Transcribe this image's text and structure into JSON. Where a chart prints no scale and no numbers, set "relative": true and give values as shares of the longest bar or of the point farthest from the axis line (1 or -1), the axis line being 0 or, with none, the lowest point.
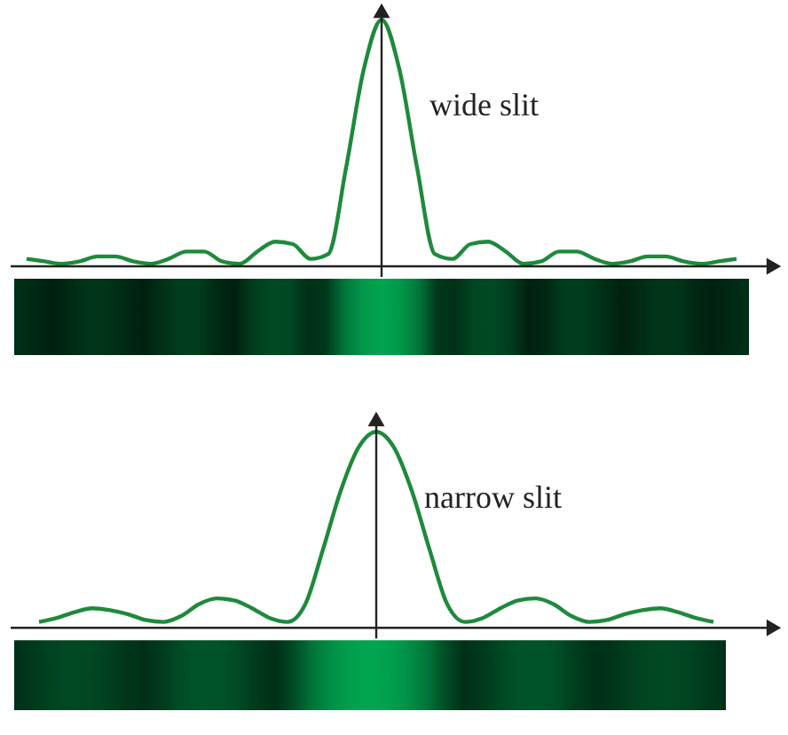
{
  "chart_data": [
    {
      "type": "line",
      "relative": true,
      "annotations": [
        "wide slit"
      ],
      "categories": [
        null,
        null,
        null,
        null,
        null,
        null,
        null,
        null,
        null,
        null,
        null,
        null,
        null,
        null,
        null,
        null,
        null,
        null,
        null,
        null,
        null,
        null,
        null,
        null,
        null,
        null,
        null,
        null,
        null,
        null,
        null,
        null,
        null,
        null,
        null,
        null,
        null,
        null,
        null,
        null,
        null
      ],
      "series": [
        {
          "color": "#1e8a3c",
          "values": [
            0.03,
            0.02,
            0.01,
            0.02,
            0.04,
            0.04,
            0.02,
            0.01,
            0.03,
            0.06,
            0.06,
            0.02,
            0.01,
            0.06,
            0.1,
            0.09,
            0.03,
            0.05,
            0.4,
            0.8,
            1,
            0.8,
            0.4,
            0.05,
            0.03,
            0.09,
            0.1,
            0.06,
            0.01,
            0.02,
            0.06,
            0.06,
            0.03,
            0.01,
            0.02,
            0.04,
            0.04,
            0.02,
            0.01,
            0.02,
            0.03
          ]
        }
      ]
    },
    {
      "type": "line",
      "relative": true,
      "annotations": [
        "narrow slit"
      ],
      "categories": [
        null,
        null,
        null,
        null,
        null,
        null,
        null,
        null,
        null,
        null,
        null,
        null,
        null,
        null,
        null,
        null,
        null,
        null,
        null,
        null,
        null,
        null,
        null,
        null,
        null,
        null,
        null,
        null,
        null,
        null,
        null,
        null,
        null,
        null,
        null,
        null,
        null,
        null,
        null
      ],
      "series": [
        {
          "color": "#1e8a3c",
          "values": [
            0.03,
            0.05,
            0.08,
            0.1,
            0.09,
            0.07,
            0.04,
            0.03,
            0.06,
            0.12,
            0.15,
            0.14,
            0.1,
            0.05,
            0.03,
            0.12,
            0.4,
            0.7,
            0.92,
            1,
            0.92,
            0.7,
            0.4,
            0.12,
            0.03,
            0.05,
            0.1,
            0.14,
            0.15,
            0.12,
            0.06,
            0.03,
            0.04,
            0.07,
            0.09,
            0.1,
            0.08,
            0.05,
            0.03
          ]
        }
      ]
    }
  ]
}
